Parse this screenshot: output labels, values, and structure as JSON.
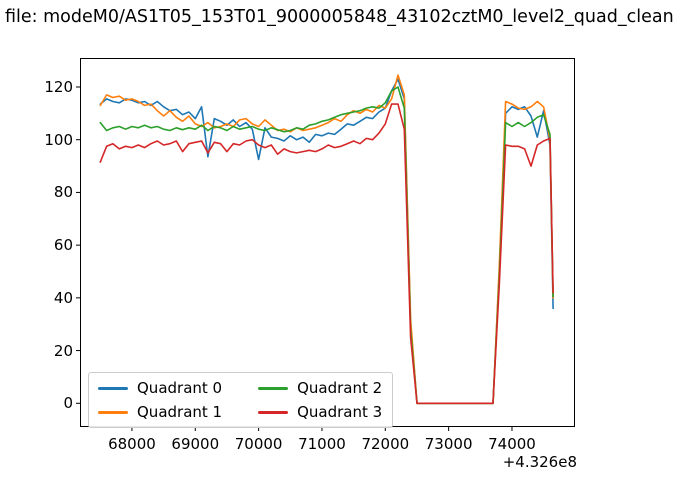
{
  "chart_data": {
    "type": "line",
    "title": "file: modeM0/AS1T05_153T01_9000005848_43102cztM0_level2_quad_clean",
    "xlabel": "",
    "ylabel": "",
    "x_offset_label": "+4.326e8",
    "grid": false,
    "legend_position": "lower left",
    "legend_columns": 2,
    "xlim": [
      67180,
      74995
    ],
    "ylim": [
      -9,
      131
    ],
    "xticks": {
      "values": [
        68000,
        69000,
        70000,
        71000,
        72000,
        73000,
        74000
      ],
      "labels": [
        "68000",
        "69000",
        "70000",
        "71000",
        "72000",
        "73000",
        "74000"
      ]
    },
    "yticks": {
      "values": [
        0,
        20,
        40,
        60,
        80,
        100,
        120
      ],
      "labels": [
        "0",
        "20",
        "40",
        "60",
        "80",
        "100",
        "120"
      ]
    },
    "x": [
      67500,
      67600,
      67700,
      67800,
      67900,
      68000,
      68100,
      68200,
      68300,
      68400,
      68500,
      68600,
      68700,
      68800,
      68900,
      69000,
      69100,
      69200,
      69300,
      69400,
      69500,
      69600,
      69700,
      69800,
      69900,
      70000,
      70100,
      70200,
      70300,
      70400,
      70500,
      70600,
      70700,
      70800,
      70900,
      71000,
      71100,
      71200,
      71300,
      71400,
      71500,
      71600,
      71700,
      71800,
      71900,
      72000,
      72100,
      72200,
      72300,
      72400,
      72500,
      72600,
      72700,
      72800,
      72900,
      73000,
      73100,
      73200,
      73300,
      73400,
      73500,
      73600,
      73700,
      73800,
      73900,
      74000,
      74100,
      74200,
      74300,
      74400,
      74500,
      74600,
      74650
    ],
    "series": [
      {
        "name": "Quadrant 0",
        "color": "#1f77b4",
        "values": [
          113.5,
          115.5,
          114.5,
          114,
          115.5,
          115,
          114,
          114.5,
          113,
          114.5,
          112.5,
          111,
          111.5,
          109.5,
          110.5,
          108,
          112.5,
          93.5,
          108,
          107,
          105.5,
          107.5,
          105,
          106.5,
          104,
          92.5,
          104.5,
          101,
          100.5,
          99.5,
          101.5,
          100,
          101,
          99,
          102,
          101.5,
          102.5,
          102,
          104,
          106,
          105.5,
          107,
          108.5,
          108,
          110.5,
          112,
          118.5,
          123,
          115.5,
          30,
          0,
          0,
          0,
          0,
          0,
          0,
          0,
          0,
          0,
          0,
          0,
          0,
          0,
          50,
          110,
          112.5,
          111.5,
          112.5,
          109,
          101,
          111,
          98,
          36
        ]
      },
      {
        "name": "Quadrant 1",
        "color": "#ff7f0e",
        "values": [
          113,
          117,
          116,
          116.5,
          115,
          115.5,
          114.5,
          113,
          113.5,
          111,
          109,
          111,
          108.5,
          107,
          109,
          106,
          105,
          106.5,
          104.5,
          105,
          106,
          105,
          107.5,
          108,
          106,
          105,
          107.5,
          105.5,
          103.5,
          104,
          103,
          104.5,
          103.5,
          104,
          104.5,
          105.5,
          106.5,
          108,
          107,
          109.5,
          111,
          110,
          111.5,
          110.5,
          113,
          112,
          115.5,
          124.5,
          117,
          32,
          0,
          0,
          0,
          0,
          0,
          0,
          0,
          0,
          0,
          0,
          0,
          0,
          0,
          52,
          114.5,
          113.5,
          112,
          111.5,
          112.5,
          114.5,
          112.5,
          100,
          40
        ]
      },
      {
        "name": "Quadrant 2",
        "color": "#2ca02c",
        "values": [
          106.5,
          103.5,
          104.5,
          105,
          104,
          105,
          104.5,
          105.5,
          104.5,
          105,
          104,
          103.5,
          104.5,
          103.8,
          104.5,
          104,
          105.5,
          103.5,
          105,
          104.5,
          103.5,
          105,
          104,
          104.5,
          105,
          104,
          103.5,
          104.5,
          103.8,
          103,
          103.5,
          104.5,
          104,
          105.5,
          106,
          107,
          107.5,
          108.5,
          109.5,
          110,
          110.5,
          111,
          112,
          112.5,
          112,
          114,
          118.5,
          120,
          112,
          28,
          0,
          0,
          0,
          0,
          0,
          0,
          0,
          0,
          0,
          0,
          0,
          0,
          0,
          48,
          106.5,
          105,
          106.5,
          105,
          106.5,
          108.5,
          109.5,
          102,
          40.5
        ]
      },
      {
        "name": "Quadrant 3",
        "color": "#d62728",
        "values": [
          91.5,
          97.5,
          98.5,
          96.5,
          97.5,
          97,
          98,
          97,
          98.5,
          99.5,
          98,
          98.5,
          99.5,
          95.5,
          98.5,
          99,
          99.5,
          95,
          99,
          98.5,
          95.5,
          98.5,
          98,
          99.5,
          100,
          98,
          97,
          98,
          94.5,
          96.5,
          95.5,
          95,
          95.5,
          96,
          95.5,
          96.5,
          98,
          97,
          97.5,
          98.5,
          99.5,
          98.5,
          100.5,
          100,
          102.5,
          106,
          113.5,
          113.5,
          104,
          25,
          0,
          0,
          0,
          0,
          0,
          0,
          0,
          0,
          0,
          0,
          0,
          0,
          0,
          45,
          98,
          97.5,
          97.5,
          96.5,
          90,
          98,
          99.5,
          100.5,
          42
        ]
      }
    ]
  }
}
